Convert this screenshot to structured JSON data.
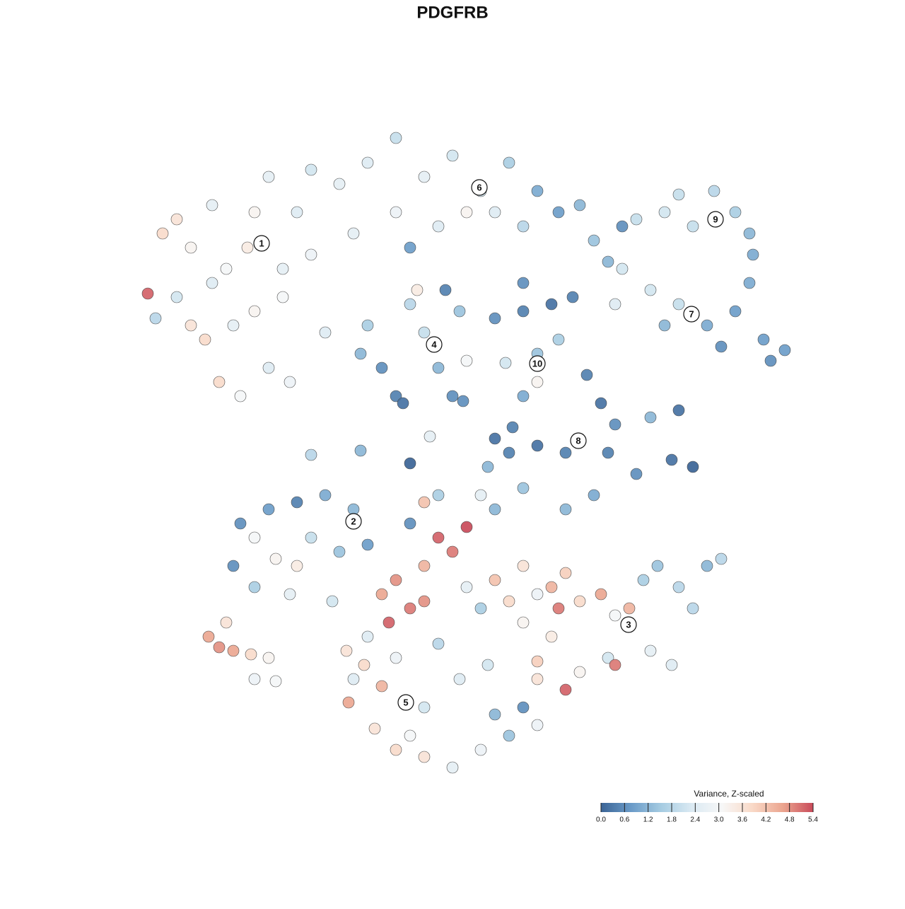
{
  "chart_data": {
    "type": "scatter",
    "title": "PDGFRB",
    "x": [
      0.9,
      3,
      5,
      7,
      10,
      12,
      9,
      11,
      14,
      16,
      18,
      20,
      22,
      24,
      16,
      13,
      18,
      21,
      5,
      2,
      24,
      26,
      10,
      15,
      20,
      7,
      28,
      32,
      36,
      40,
      44,
      48,
      50,
      52,
      56,
      59,
      62,
      36,
      42,
      46,
      30,
      54,
      64,
      66,
      38,
      70,
      74,
      78,
      81,
      84,
      86,
      86.5,
      86,
      68,
      76,
      68,
      72,
      76,
      80,
      84,
      88,
      91,
      82,
      74,
      67,
      89,
      32,
      34,
      36,
      38,
      40,
      42,
      44,
      45,
      31,
      39,
      46,
      37,
      43,
      50,
      54,
      58,
      56,
      56,
      59,
      61,
      51.5,
      54,
      63,
      65,
      67,
      72,
      76,
      75,
      70,
      78,
      56,
      52,
      50,
      60,
      66,
      38,
      49,
      24,
      31,
      40.8,
      45.5,
      52.5,
      54,
      14,
      18,
      22,
      26,
      30,
      32,
      13,
      16,
      19,
      22,
      21,
      24,
      27,
      16,
      28,
      9.5,
      11,
      13,
      15.5,
      18,
      16,
      19,
      12,
      34,
      36,
      38,
      40,
      42,
      40,
      35,
      44,
      46,
      46,
      48,
      50,
      52,
      54,
      56,
      58,
      59,
      60,
      62,
      65,
      67,
      69,
      71,
      73,
      76,
      80,
      82,
      78,
      72,
      66,
      67,
      62,
      60,
      58,
      56,
      54,
      50,
      48,
      54,
      60,
      64,
      42,
      40,
      38,
      56,
      75,
      29,
      30,
      31.5,
      34,
      29.3,
      33,
      36,
      40,
      44,
      48,
      52,
      56,
      40,
      45,
      49,
      42,
      36,
      50,
      54,
      38,
      32
    ],
    "y": [
      68.5,
      77,
      79,
      75,
      81,
      72,
      62,
      56,
      54,
      80,
      85,
      68,
      80,
      74,
      66,
      64,
      58,
      56,
      68,
      65,
      86,
      63,
      70,
      75,
      72,
      64,
      84,
      87,
      90.5,
      85,
      88,
      83,
      80,
      87,
      83,
      80,
      81,
      80,
      78,
      80,
      77,
      78,
      76,
      73,
      75,
      79,
      80,
      78,
      83,
      80,
      77,
      74,
      70,
      78,
      82.5,
      72,
      69,
      67,
      64,
      66,
      62,
      60.5,
      61,
      64,
      67,
      59,
      64,
      58,
      54,
      67,
      63,
      58,
      54,
      66,
      60,
      69,
      59,
      53,
      69,
      65,
      66,
      67,
      60,
      56,
      62,
      68,
      58.7,
      70,
      57,
      53,
      50,
      51,
      52,
      45,
      43,
      44,
      47,
      46,
      48,
      46,
      46,
      44.5,
      44,
      45.7,
      46.3,
      48.3,
      53.3,
      49.6,
      54,
      36,
      38,
      39,
      40,
      38,
      33,
      30,
      27,
      31,
      30,
      26,
      34,
      25,
      34,
      32,
      20,
      18.5,
      18,
      17.5,
      17,
      14,
      13.7,
      22,
      26,
      28,
      24,
      30,
      34,
      25,
      22,
      32,
      35.5,
      27,
      24,
      28,
      25,
      30,
      26,
      27,
      24,
      29,
      25,
      26,
      23,
      24,
      28,
      30,
      27,
      30,
      31,
      24,
      18,
      17,
      16,
      15,
      12.5,
      20,
      16.5,
      22,
      38,
      40,
      41,
      38,
      40,
      40,
      39,
      36,
      14,
      16,
      18,
      14,
      16,
      13,
      10.7,
      7,
      4,
      3,
      1.5,
      4,
      6,
      7.5,
      10,
      14,
      16,
      19,
      17,
      9,
      10,
      6,
      20
    ],
    "values": [
      5.2,
      3.8,
      3.6,
      3.2,
      2.6,
      3.0,
      3.8,
      3.8,
      3.0,
      3.2,
      2.6,
      3.0,
      2.4,
      2.8,
      3.2,
      2.6,
      2.4,
      2.8,
      2.2,
      1.8,
      2.2,
      2.4,
      2.4,
      3.4,
      2.6,
      3.6,
      2.6,
      2.4,
      2.0,
      2.6,
      2.2,
      2.2,
      2.4,
      1.6,
      1.0,
      0.8,
      1.2,
      2.8,
      2.4,
      3.2,
      2.6,
      1.8,
      1.4,
      1.2,
      0.8,
      2.0,
      2.2,
      2.0,
      1.8,
      1.6,
      1.2,
      1.0,
      1.0,
      0.6,
      2.0,
      2.2,
      2.2,
      2.0,
      1.0,
      0.8,
      0.8,
      0.8,
      0.6,
      1.2,
      2.4,
      0.6,
      1.6,
      0.6,
      0.4,
      1.8,
      2.0,
      1.2,
      0.6,
      1.4,
      1.2,
      3.4,
      3.0,
      0.2,
      0.4,
      0.6,
      0.4,
      0.2,
      1.4,
      3.2,
      1.6,
      0.4,
      2.2,
      0.6,
      0.4,
      0.2,
      0.6,
      1.2,
      0.2,
      0.2,
      0.6,
      0.0,
      0.2,
      0.4,
      0.2,
      0.4,
      0.4,
      0.0,
      1.2,
      1.8,
      1.2,
      2.6,
      0.6,
      0.4,
      1.0,
      0.6,
      0.8,
      0.4,
      1.0,
      1.2,
      0.8,
      0.6,
      1.6,
      3.2,
      3.4,
      2.6,
      2.0,
      2.2,
      3.0,
      1.4,
      4.6,
      4.8,
      4.6,
      3.8,
      3.2,
      2.8,
      3.0,
      3.6,
      4.6,
      4.8,
      5.0,
      4.4,
      5.2,
      4.8,
      5.2,
      5.0,
      5.4,
      2.6,
      1.6,
      4.2,
      3.8,
      3.6,
      2.8,
      4.4,
      5.0,
      4.0,
      3.8,
      4.6,
      3.0,
      4.4,
      1.6,
      1.4,
      1.8,
      1.2,
      1.8,
      1.8,
      2.6,
      2.2,
      5.0,
      3.2,
      5.2,
      3.4,
      4.0,
      3.2,
      1.2,
      2.6,
      1.4,
      1.2,
      1.0,
      1.6,
      4.2,
      0.6,
      3.6,
      2.4,
      3.6,
      2.4,
      3.8,
      4.4,
      4.6,
      3.6,
      3.8,
      3.6,
      2.6,
      2.8,
      1.4,
      2.8,
      2.2,
      2.4,
      2.2,
      1.8,
      2.8,
      1.2,
      0.6,
      3.0,
      2.4
    ],
    "cluster_labels": [
      {
        "label": "1",
        "x": 17,
        "y": 75.6
      },
      {
        "label": "6",
        "x": 47.8,
        "y": 83.5
      },
      {
        "label": "9",
        "x": 81.2,
        "y": 79
      },
      {
        "label": "7",
        "x": 77.8,
        "y": 65.6
      },
      {
        "label": "4",
        "x": 41.4,
        "y": 61.3
      },
      {
        "label": "10",
        "x": 56,
        "y": 58.6
      },
      {
        "label": "8",
        "x": 61.8,
        "y": 47.7
      },
      {
        "label": "2",
        "x": 30,
        "y": 36.3
      },
      {
        "label": "3",
        "x": 68.9,
        "y": 21.7
      },
      {
        "label": "5",
        "x": 37.4,
        "y": 10.7
      }
    ],
    "colorbar_title": "Variance, Z-scaled",
    "clim": [
      0,
      5.4
    ],
    "cticks": [
      {
        "value": 0,
        "label": "0.0"
      },
      {
        "value": 0.6,
        "label": "0.6"
      },
      {
        "value": 1.2,
        "label": "1.2"
      },
      {
        "value": 1.8,
        "label": "1.8"
      },
      {
        "value": 2.4,
        "label": "2.4"
      },
      {
        "value": 3,
        "label": "3.0"
      },
      {
        "value": 3.6,
        "label": "3.6"
      },
      {
        "value": 4.2,
        "label": "4.2"
      },
      {
        "value": 4.8,
        "label": "4.8"
      },
      {
        "value": 5.4,
        "label": "5.4"
      }
    ],
    "colorscale": [
      "#3b6496",
      "#6a9bc8",
      "#a6cce2",
      "#dbeaf3",
      "#f7f7f7",
      "#f9d9c7",
      "#eba58f",
      "#c94b5a"
    ]
  }
}
